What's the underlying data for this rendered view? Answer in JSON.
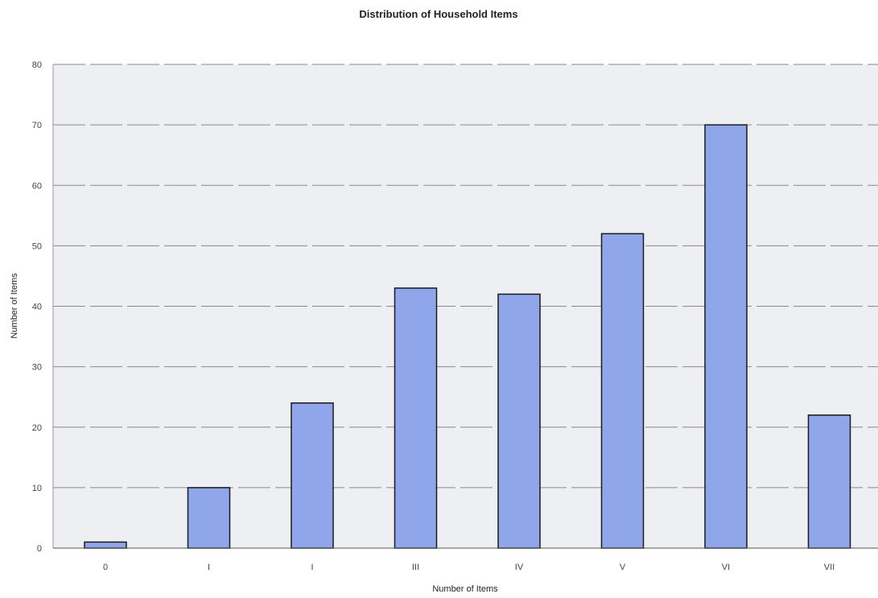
{
  "chart_data": {
    "type": "bar",
    "title": "Distribution of Household Items",
    "xlabel": "Number of Items",
    "ylabel": "Number of Items",
    "categories": [
      "0",
      "I",
      "I",
      "III",
      "IV",
      "V",
      "VI",
      "VII"
    ],
    "values": [
      1,
      10,
      24,
      43,
      42,
      52,
      70,
      22
    ],
    "ylim": [
      0,
      80
    ],
    "yticks": [
      "0",
      "10",
      "20",
      "30",
      "40",
      "50",
      "60",
      "70",
      "80"
    ],
    "grid": true,
    "legend": "none",
    "colors": {
      "bar_fill": "#8fa6ea",
      "bar_stroke": "#1a1a1a",
      "plot_background": "#eeeff2",
      "grid": "#8a8a8a"
    }
  }
}
